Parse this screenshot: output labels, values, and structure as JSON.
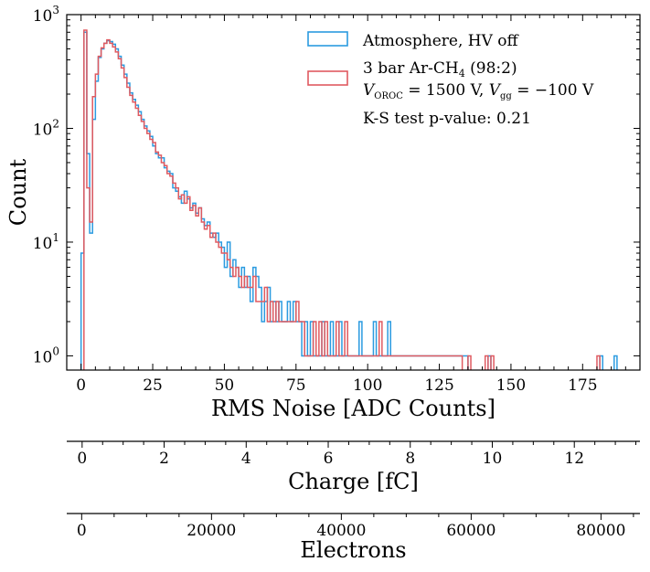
{
  "chart_data": {
    "type": "histogram",
    "xlabel": "RMS Noise [ADC Counts]",
    "ylabel": "Count",
    "xlim": [
      -5,
      195
    ],
    "ylim": [
      0.75,
      1000
    ],
    "yscale": "log",
    "bin_width": 1,
    "x_ticks": [
      0,
      25,
      50,
      75,
      100,
      125,
      150,
      175
    ],
    "y_tick_labels": [
      {
        "value": 1,
        "base": "10",
        "exp": "0"
      },
      {
        "value": 10,
        "base": "10",
        "exp": "1"
      },
      {
        "value": 100,
        "base": "10",
        "exp": "2"
      },
      {
        "value": 1000,
        "base": "10",
        "exp": "3"
      }
    ],
    "legend": {
      "position": "top-right",
      "entries": [
        {
          "line1": "Atmosphere, HV off"
        },
        {
          "line1": "3 bar Ar-CH",
          "line1_sub": "4",
          "line1_tail": " (98:2)",
          "line2_v": "V",
          "line2_v_sub": "OROC",
          "line2_mid": " = 1500 V, ",
          "line2_v2": "V",
          "line2_v2_sub": "gg",
          "line2_tail": " = −100 V"
        }
      ],
      "annotation": "K-S test p-value: 0.21"
    },
    "series": [
      {
        "name": "Atmosphere, HV off",
        "color": "#2b9be0",
        "bins": [
          [
            0,
            8
          ],
          [
            1,
            700
          ],
          [
            2,
            60
          ],
          [
            3,
            12
          ],
          [
            4,
            120
          ],
          [
            5,
            260
          ],
          [
            6,
            420
          ],
          [
            7,
            500
          ],
          [
            8,
            560
          ],
          [
            9,
            590
          ],
          [
            10,
            580
          ],
          [
            11,
            550
          ],
          [
            12,
            500
          ],
          [
            13,
            430
          ],
          [
            14,
            360
          ],
          [
            15,
            300
          ],
          [
            16,
            250
          ],
          [
            17,
            205
          ],
          [
            18,
            180
          ],
          [
            19,
            160
          ],
          [
            20,
            140
          ],
          [
            21,
            120
          ],
          [
            22,
            105
          ],
          [
            23,
            95
          ],
          [
            24,
            85
          ],
          [
            25,
            70
          ],
          [
            26,
            60
          ],
          [
            27,
            55
          ],
          [
            28,
            55
          ],
          [
            29,
            45
          ],
          [
            30,
            42
          ],
          [
            31,
            40
          ],
          [
            32,
            30
          ],
          [
            33,
            28
          ],
          [
            34,
            25
          ],
          [
            35,
            22
          ],
          [
            36,
            28
          ],
          [
            37,
            24
          ],
          [
            38,
            20
          ],
          [
            39,
            22
          ],
          [
            40,
            18
          ],
          [
            41,
            20
          ],
          [
            42,
            16
          ],
          [
            43,
            14
          ],
          [
            44,
            15
          ],
          [
            45,
            12
          ],
          [
            46,
            11
          ],
          [
            47,
            12
          ],
          [
            48,
            10
          ],
          [
            49,
            9
          ],
          [
            50,
            6
          ],
          [
            51,
            10
          ],
          [
            52,
            5
          ],
          [
            53,
            7
          ],
          [
            54,
            6
          ],
          [
            55,
            4
          ],
          [
            56,
            6
          ],
          [
            57,
            4
          ],
          [
            58,
            5
          ],
          [
            59,
            3
          ],
          [
            60,
            6
          ],
          [
            61,
            5
          ],
          [
            62,
            4
          ],
          [
            63,
            2
          ],
          [
            64,
            3
          ],
          [
            65,
            4
          ],
          [
            66,
            2
          ],
          [
            67,
            3
          ],
          [
            68,
            2
          ],
          [
            69,
            3
          ],
          [
            70,
            2
          ],
          [
            71,
            2
          ],
          [
            72,
            3
          ],
          [
            73,
            2
          ],
          [
            74,
            3
          ],
          [
            75,
            2
          ],
          [
            76,
            2
          ],
          [
            77,
            1
          ],
          [
            78,
            2
          ],
          [
            79,
            1
          ],
          [
            80,
            2
          ],
          [
            81,
            1
          ],
          [
            82,
            1
          ],
          [
            83,
            1
          ],
          [
            84,
            2
          ],
          [
            85,
            1
          ],
          [
            86,
            1
          ],
          [
            87,
            2
          ],
          [
            88,
            1
          ],
          [
            89,
            1
          ],
          [
            90,
            2
          ],
          [
            91,
            1
          ],
          [
            92,
            1
          ],
          [
            93,
            1
          ],
          [
            94,
            1
          ],
          [
            95,
            1
          ],
          [
            96,
            1
          ],
          [
            97,
            2
          ],
          [
            98,
            1
          ],
          [
            99,
            1
          ],
          [
            100,
            1
          ],
          [
            101,
            1
          ],
          [
            102,
            2
          ],
          [
            103,
            1
          ],
          [
            104,
            1
          ],
          [
            105,
            1
          ],
          [
            106,
            1
          ],
          [
            107,
            2
          ],
          [
            108,
            1
          ],
          [
            109,
            1
          ],
          [
            110,
            1
          ],
          [
            111,
            1
          ],
          [
            112,
            1
          ],
          [
            113,
            1
          ],
          [
            114,
            1
          ],
          [
            115,
            1
          ],
          [
            116,
            1
          ],
          [
            117,
            1
          ],
          [
            118,
            1
          ],
          [
            119,
            1
          ],
          [
            120,
            1
          ],
          [
            121,
            1
          ],
          [
            122,
            1
          ],
          [
            123,
            1
          ],
          [
            124,
            1
          ],
          [
            125,
            1
          ],
          [
            126,
            1
          ],
          [
            127,
            1
          ],
          [
            128,
            1
          ],
          [
            129,
            1
          ],
          [
            130,
            1
          ],
          [
            131,
            1
          ],
          [
            132,
            1
          ],
          [
            133,
            1
          ],
          [
            134,
            1
          ],
          [
            142,
            1
          ],
          [
            181,
            1
          ],
          [
            186,
            1
          ]
        ]
      },
      {
        "name": "3 bar Ar-CH4 (98:2)",
        "color": "#e05a60",
        "bins": [
          [
            1,
            730
          ],
          [
            2,
            30
          ],
          [
            3,
            15
          ],
          [
            4,
            190
          ],
          [
            5,
            300
          ],
          [
            6,
            430
          ],
          [
            7,
            510
          ],
          [
            8,
            560
          ],
          [
            9,
            600
          ],
          [
            10,
            560
          ],
          [
            11,
            520
          ],
          [
            12,
            470
          ],
          [
            13,
            410
          ],
          [
            14,
            340
          ],
          [
            15,
            280
          ],
          [
            16,
            230
          ],
          [
            17,
            195
          ],
          [
            18,
            170
          ],
          [
            19,
            150
          ],
          [
            20,
            130
          ],
          [
            21,
            115
          ],
          [
            22,
            100
          ],
          [
            23,
            90
          ],
          [
            24,
            80
          ],
          [
            25,
            75
          ],
          [
            26,
            62
          ],
          [
            27,
            58
          ],
          [
            28,
            50
          ],
          [
            29,
            47
          ],
          [
            30,
            40
          ],
          [
            31,
            38
          ],
          [
            32,
            33
          ],
          [
            33,
            30
          ],
          [
            34,
            24
          ],
          [
            35,
            26
          ],
          [
            36,
            22
          ],
          [
            37,
            25
          ],
          [
            38,
            19
          ],
          [
            39,
            21
          ],
          [
            40,
            17
          ],
          [
            41,
            20
          ],
          [
            42,
            15
          ],
          [
            43,
            13
          ],
          [
            44,
            14
          ],
          [
            45,
            11
          ],
          [
            46,
            12
          ],
          [
            47,
            10
          ],
          [
            48,
            9
          ],
          [
            49,
            8
          ],
          [
            50,
            8
          ],
          [
            51,
            7
          ],
          [
            52,
            6
          ],
          [
            53,
            5
          ],
          [
            54,
            6
          ],
          [
            55,
            5
          ],
          [
            56,
            4
          ],
          [
            57,
            5
          ],
          [
            58,
            4
          ],
          [
            59,
            4
          ],
          [
            60,
            5
          ],
          [
            61,
            3
          ],
          [
            62,
            3
          ],
          [
            63,
            3
          ],
          [
            64,
            4
          ],
          [
            65,
            2
          ],
          [
            66,
            3
          ],
          [
            67,
            2
          ],
          [
            68,
            3
          ],
          [
            69,
            2
          ],
          [
            70,
            2
          ],
          [
            71,
            2
          ],
          [
            72,
            2
          ],
          [
            73,
            2
          ],
          [
            74,
            2
          ],
          [
            75,
            3
          ],
          [
            76,
            2
          ],
          [
            77,
            2
          ],
          [
            78,
            1
          ],
          [
            79,
            1
          ],
          [
            80,
            1
          ],
          [
            81,
            2
          ],
          [
            82,
            1
          ],
          [
            83,
            2
          ],
          [
            84,
            1
          ],
          [
            85,
            2
          ],
          [
            86,
            1
          ],
          [
            87,
            1
          ],
          [
            88,
            1
          ],
          [
            89,
            2
          ],
          [
            90,
            1
          ],
          [
            91,
            1
          ],
          [
            92,
            2
          ],
          [
            93,
            1
          ],
          [
            94,
            1
          ],
          [
            95,
            1
          ],
          [
            96,
            1
          ],
          [
            97,
            1
          ],
          [
            98,
            1
          ],
          [
            99,
            1
          ],
          [
            100,
            1
          ],
          [
            101,
            1
          ],
          [
            102,
            1
          ],
          [
            103,
            1
          ],
          [
            104,
            2
          ],
          [
            105,
            1
          ],
          [
            106,
            1
          ],
          [
            107,
            1
          ],
          [
            108,
            1
          ],
          [
            109,
            1
          ],
          [
            110,
            1
          ],
          [
            111,
            1
          ],
          [
            112,
            1
          ],
          [
            113,
            1
          ],
          [
            114,
            1
          ],
          [
            115,
            1
          ],
          [
            116,
            1
          ],
          [
            117,
            1
          ],
          [
            118,
            1
          ],
          [
            119,
            1
          ],
          [
            120,
            1
          ],
          [
            121,
            1
          ],
          [
            122,
            1
          ],
          [
            123,
            1
          ],
          [
            124,
            1
          ],
          [
            125,
            1
          ],
          [
            126,
            1
          ],
          [
            127,
            1
          ],
          [
            128,
            1
          ],
          [
            129,
            1
          ],
          [
            130,
            1
          ],
          [
            131,
            1
          ],
          [
            132,
            1
          ],
          [
            135,
            1
          ],
          [
            141,
            1
          ],
          [
            143,
            1
          ],
          [
            180,
            1
          ]
        ]
      }
    ],
    "secondary_axes": [
      {
        "label": "Charge [fC]",
        "major_ticks": [
          "0",
          "2",
          "4",
          "6",
          "8",
          "10",
          "12"
        ],
        "major_values": [
          0,
          2,
          4,
          6,
          8,
          10,
          12
        ],
        "minor_step": 0.5,
        "range": [
          -0.375,
          13.6
        ]
      },
      {
        "label": "Electrons",
        "major_ticks": [
          "0",
          "20000",
          "40000",
          "60000",
          "80000"
        ],
        "major_values": [
          0,
          20000,
          40000,
          60000,
          80000
        ],
        "minor_step": 5000,
        "range": [
          -2300,
          86000
        ]
      }
    ]
  }
}
